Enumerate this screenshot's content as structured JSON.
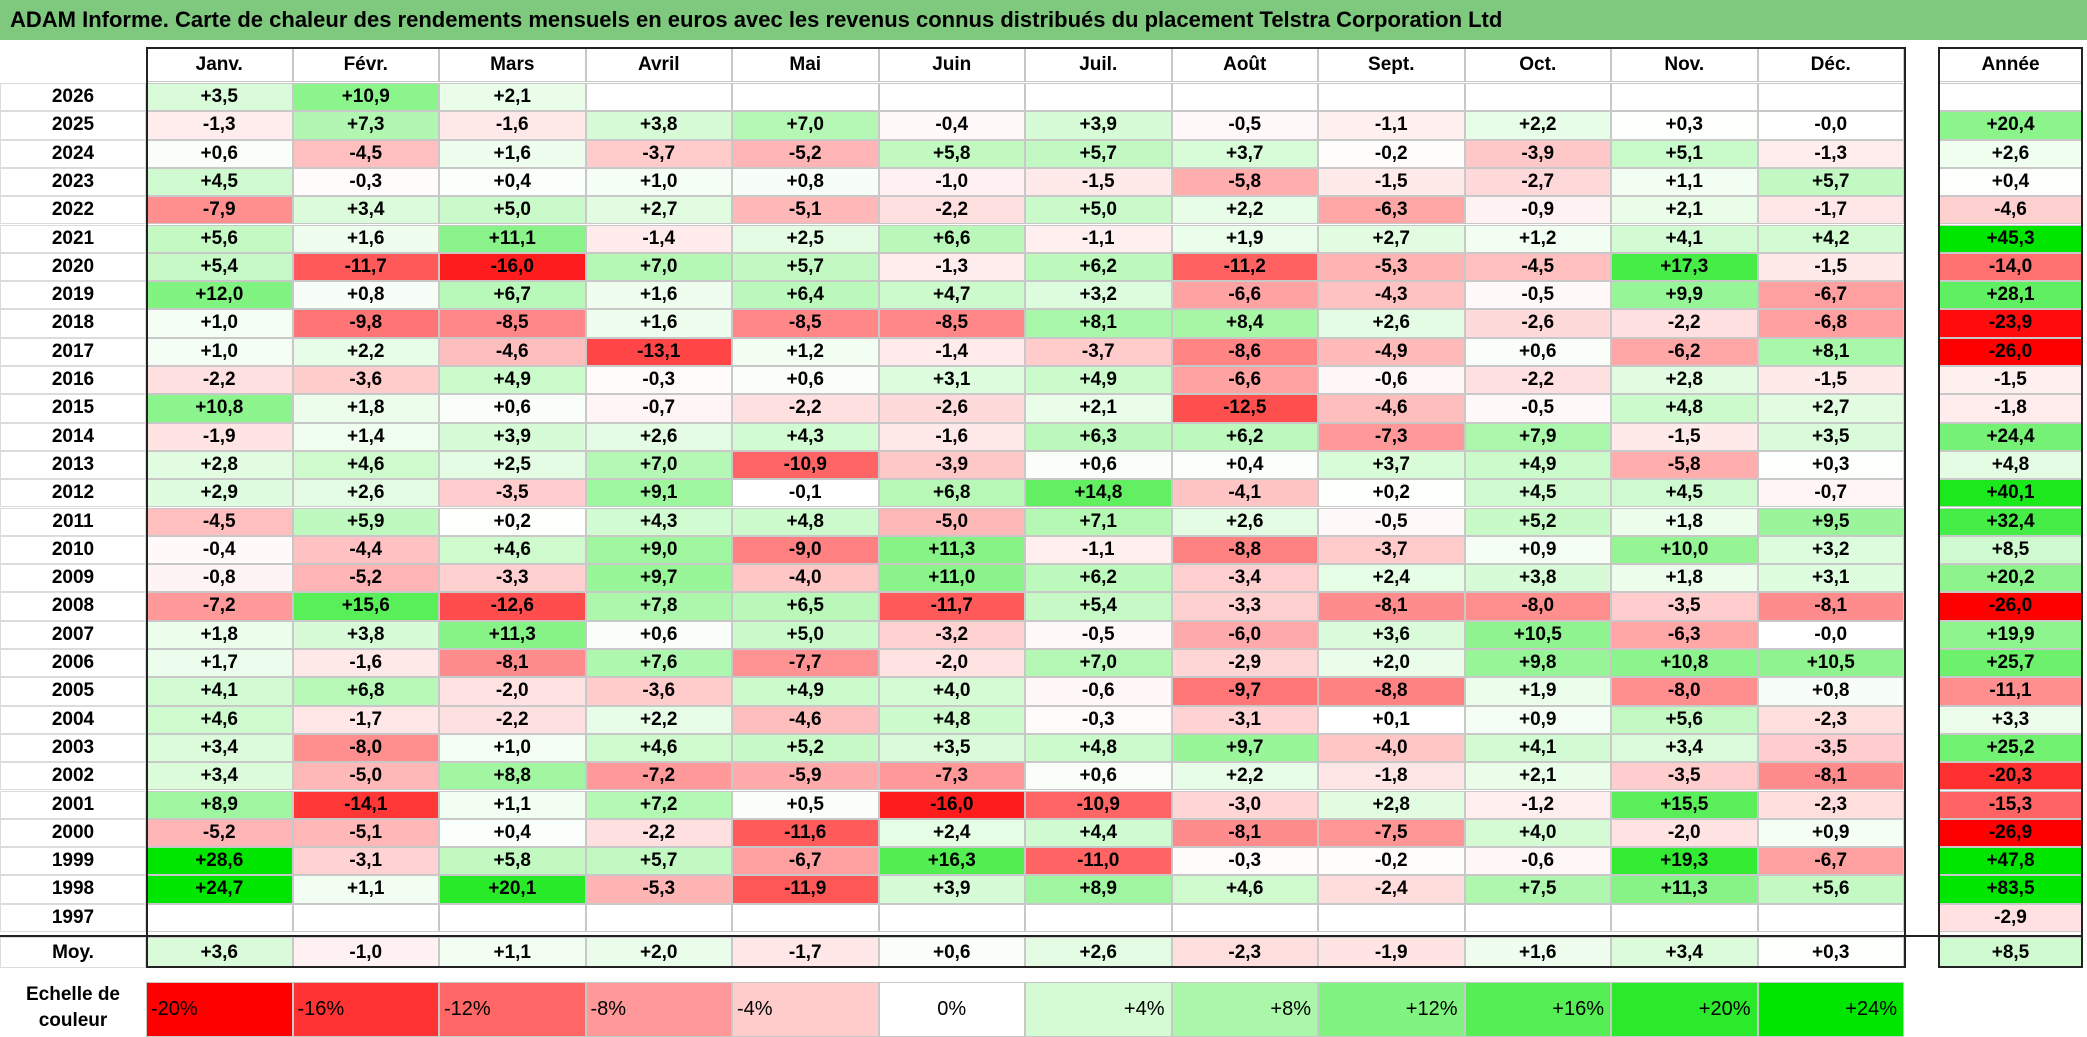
{
  "title": "ADAM Informe. Carte de chaleur des rendements mensuels en euros avec les revenus connus distribués du placement Telstra Corporation Ltd",
  "colors": {
    "title_bg": "#7fc97f",
    "neg_max": "#ff0000",
    "pos_max": "#00e600",
    "neutral": "#ffffff"
  },
  "chart_data": {
    "type": "heatmap",
    "months": [
      "Janv.",
      "Févr.",
      "Mars",
      "Avril",
      "Mai",
      "Juin",
      "Juil.",
      "Août",
      "Sept.",
      "Oct.",
      "Nov.",
      "Déc."
    ],
    "year_header": "Année",
    "rows": [
      {
        "year": "2026",
        "values": [
          "+3,5",
          "+10,9",
          "+2,1",
          "",
          "",
          "",
          "",
          "",
          "",
          "",
          "",
          ""
        ],
        "annual": ""
      },
      {
        "year": "2025",
        "values": [
          "-1,3",
          "+7,3",
          "-1,6",
          "+3,8",
          "+7,0",
          "-0,4",
          "+3,9",
          "-0,5",
          "-1,1",
          "+2,2",
          "+0,3",
          "-0,0"
        ],
        "annual": "+20,4"
      },
      {
        "year": "2024",
        "values": [
          "+0,6",
          "-4,5",
          "+1,6",
          "-3,7",
          "-5,2",
          "+5,8",
          "+5,7",
          "+3,7",
          "-0,2",
          "-3,9",
          "+5,1",
          "-1,3"
        ],
        "annual": "+2,6"
      },
      {
        "year": "2023",
        "values": [
          "+4,5",
          "-0,3",
          "+0,4",
          "+1,0",
          "+0,8",
          "-1,0",
          "-1,5",
          "-5,8",
          "-1,5",
          "-2,7",
          "+1,1",
          "+5,7"
        ],
        "annual": "+0,4"
      },
      {
        "year": "2022",
        "values": [
          "-7,9",
          "+3,4",
          "+5,0",
          "+2,7",
          "-5,1",
          "-2,2",
          "+5,0",
          "+2,2",
          "-6,3",
          "-0,9",
          "+2,1",
          "-1,7"
        ],
        "annual": "-4,6"
      },
      {
        "year": "2021",
        "values": [
          "+5,6",
          "+1,6",
          "+11,1",
          "-1,4",
          "+2,5",
          "+6,6",
          "-1,1",
          "+1,9",
          "+2,7",
          "+1,2",
          "+4,1",
          "+4,2"
        ],
        "annual": "+45,3"
      },
      {
        "year": "2020",
        "values": [
          "+5,4",
          "-11,7",
          "-16,0",
          "+7,0",
          "+5,7",
          "-1,3",
          "+6,2",
          "-11,2",
          "-5,3",
          "-4,5",
          "+17,3",
          "-1,5"
        ],
        "annual": "-14,0"
      },
      {
        "year": "2019",
        "values": [
          "+12,0",
          "+0,8",
          "+6,7",
          "+1,6",
          "+6,4",
          "+4,7",
          "+3,2",
          "-6,6",
          "-4,3",
          "-0,5",
          "+9,9",
          "-6,7"
        ],
        "annual": "+28,1"
      },
      {
        "year": "2018",
        "values": [
          "+1,0",
          "-9,8",
          "-8,5",
          "+1,6",
          "-8,5",
          "-8,5",
          "+8,1",
          "+8,4",
          "+2,6",
          "-2,6",
          "-2,2",
          "-6,8"
        ],
        "annual": "-23,9"
      },
      {
        "year": "2017",
        "values": [
          "+1,0",
          "+2,2",
          "-4,6",
          "-13,1",
          "+1,2",
          "-1,4",
          "-3,7",
          "-8,6",
          "-4,9",
          "+0,6",
          "-6,2",
          "+8,1"
        ],
        "annual": "-26,0"
      },
      {
        "year": "2016",
        "values": [
          "-2,2",
          "-3,6",
          "+4,9",
          "-0,3",
          "+0,6",
          "+3,1",
          "+4,9",
          "-6,6",
          "-0,6",
          "-2,2",
          "+2,8",
          "-1,5"
        ],
        "annual": "-1,5"
      },
      {
        "year": "2015",
        "values": [
          "+10,8",
          "+1,8",
          "+0,6",
          "-0,7",
          "-2,2",
          "-2,6",
          "+2,1",
          "-12,5",
          "-4,6",
          "-0,5",
          "+4,8",
          "+2,7"
        ],
        "annual": "-1,8"
      },
      {
        "year": "2014",
        "values": [
          "-1,9",
          "+1,4",
          "+3,9",
          "+2,6",
          "+4,3",
          "-1,6",
          "+6,3",
          "+6,2",
          "-7,3",
          "+7,9",
          "-1,5",
          "+3,5"
        ],
        "annual": "+24,4"
      },
      {
        "year": "2013",
        "values": [
          "+2,8",
          "+4,6",
          "+2,5",
          "+7,0",
          "-10,9",
          "-3,9",
          "+0,6",
          "+0,4",
          "+3,7",
          "+4,9",
          "-5,8",
          "+0,3"
        ],
        "annual": "+4,8"
      },
      {
        "year": "2012",
        "values": [
          "+2,9",
          "+2,6",
          "-3,5",
          "+9,1",
          "-0,1",
          "+6,8",
          "+14,8",
          "-4,1",
          "+0,2",
          "+4,5",
          "+4,5",
          "-0,7"
        ],
        "annual": "+40,1"
      },
      {
        "year": "2011",
        "values": [
          "-4,5",
          "+5,9",
          "+0,2",
          "+4,3",
          "+4,8",
          "-5,0",
          "+7,1",
          "+2,6",
          "-0,5",
          "+5,2",
          "+1,8",
          "+9,5"
        ],
        "annual": "+32,4"
      },
      {
        "year": "2010",
        "values": [
          "-0,4",
          "-4,4",
          "+4,6",
          "+9,0",
          "-9,0",
          "+11,3",
          "-1,1",
          "-8,8",
          "-3,7",
          "+0,9",
          "+10,0",
          "+3,2"
        ],
        "annual": "+8,5"
      },
      {
        "year": "2009",
        "values": [
          "-0,8",
          "-5,2",
          "-3,3",
          "+9,7",
          "-4,0",
          "+11,0",
          "+6,2",
          "-3,4",
          "+2,4",
          "+3,8",
          "+1,8",
          "+3,1"
        ],
        "annual": "+20,2"
      },
      {
        "year": "2008",
        "values": [
          "-7,2",
          "+15,6",
          "-12,6",
          "+7,8",
          "+6,5",
          "-11,7",
          "+5,4",
          "-3,3",
          "-8,1",
          "-8,0",
          "-3,5",
          "-8,1"
        ],
        "annual": "-26,0"
      },
      {
        "year": "2007",
        "values": [
          "+1,8",
          "+3,8",
          "+11,3",
          "+0,6",
          "+5,0",
          "-3,2",
          "-0,5",
          "-6,0",
          "+3,6",
          "+10,5",
          "-6,3",
          "-0,0"
        ],
        "annual": "+19,9"
      },
      {
        "year": "2006",
        "values": [
          "+1,7",
          "-1,6",
          "-8,1",
          "+7,6",
          "-7,7",
          "-2,0",
          "+7,0",
          "-2,9",
          "+2,0",
          "+9,8",
          "+10,8",
          "+10,5"
        ],
        "annual": "+25,7"
      },
      {
        "year": "2005",
        "values": [
          "+4,1",
          "+6,8",
          "-2,0",
          "-3,6",
          "+4,9",
          "+4,0",
          "-0,6",
          "-9,7",
          "-8,8",
          "+1,9",
          "-8,0",
          "+0,8"
        ],
        "annual": "-11,1"
      },
      {
        "year": "2004",
        "values": [
          "+4,6",
          "-1,7",
          "-2,2",
          "+2,2",
          "-4,6",
          "+4,8",
          "-0,3",
          "-3,1",
          "+0,1",
          "+0,9",
          "+5,6",
          "-2,3"
        ],
        "annual": "+3,3"
      },
      {
        "year": "2003",
        "values": [
          "+3,4",
          "-8,0",
          "+1,0",
          "+4,6",
          "+5,2",
          "+3,5",
          "+4,8",
          "+9,7",
          "-4,0",
          "+4,1",
          "+3,4",
          "-3,5"
        ],
        "annual": "+25,2"
      },
      {
        "year": "2002",
        "values": [
          "+3,4",
          "-5,0",
          "+8,8",
          "-7,2",
          "-5,9",
          "-7,3",
          "+0,6",
          "+2,2",
          "-1,8",
          "+2,1",
          "-3,5",
          "-8,1"
        ],
        "annual": "-20,3"
      },
      {
        "year": "2001",
        "values": [
          "+8,9",
          "-14,1",
          "+1,1",
          "+7,2",
          "+0,5",
          "-16,0",
          "-10,9",
          "-3,0",
          "+2,8",
          "-1,2",
          "+15,5",
          "-2,3"
        ],
        "annual": "-15,3"
      },
      {
        "year": "2000",
        "values": [
          "-5,2",
          "-5,1",
          "+0,4",
          "-2,2",
          "-11,6",
          "+2,4",
          "+4,4",
          "-8,1",
          "-7,5",
          "+4,0",
          "-2,0",
          "+0,9"
        ],
        "annual": "-26,9"
      },
      {
        "year": "1999",
        "values": [
          "+28,6",
          "-3,1",
          "+5,8",
          "+5,7",
          "-6,7",
          "+16,3",
          "-11,0",
          "-0,3",
          "-0,2",
          "-0,6",
          "+19,3",
          "-6,7"
        ],
        "annual": "+47,8"
      },
      {
        "year": "1998",
        "values": [
          "+24,7",
          "+1,1",
          "+20,1",
          "-5,3",
          "-11,9",
          "+3,9",
          "+8,9",
          "+4,6",
          "-2,4",
          "+7,5",
          "+11,3",
          "+5,6"
        ],
        "annual": "+83,5"
      },
      {
        "year": "1997",
        "values": [
          "",
          "",
          "",
          "",
          "",
          "",
          "",
          "",
          "",
          "",
          "",
          ""
        ],
        "annual": "-2,9"
      }
    ],
    "average": {
      "label": "Moy.",
      "values": [
        "+3,6",
        "-1,0",
        "+1,1",
        "+2,0",
        "-1,7",
        "+0,6",
        "+2,6",
        "-2,3",
        "-1,9",
        "+1,6",
        "+3,4",
        "+0,3"
      ],
      "annual": "+8,5"
    },
    "legend": {
      "label": "Echelle de couleur",
      "items": [
        "-20%",
        "-16%",
        "-12%",
        "-8%",
        "-4%",
        "0%",
        "+4%",
        "+8%",
        "+12%",
        "+16%",
        "+20%",
        "+24%"
      ],
      "values": [
        -20,
        -16,
        -12,
        -8,
        -4,
        0,
        4,
        8,
        12,
        16,
        20,
        24
      ]
    }
  }
}
